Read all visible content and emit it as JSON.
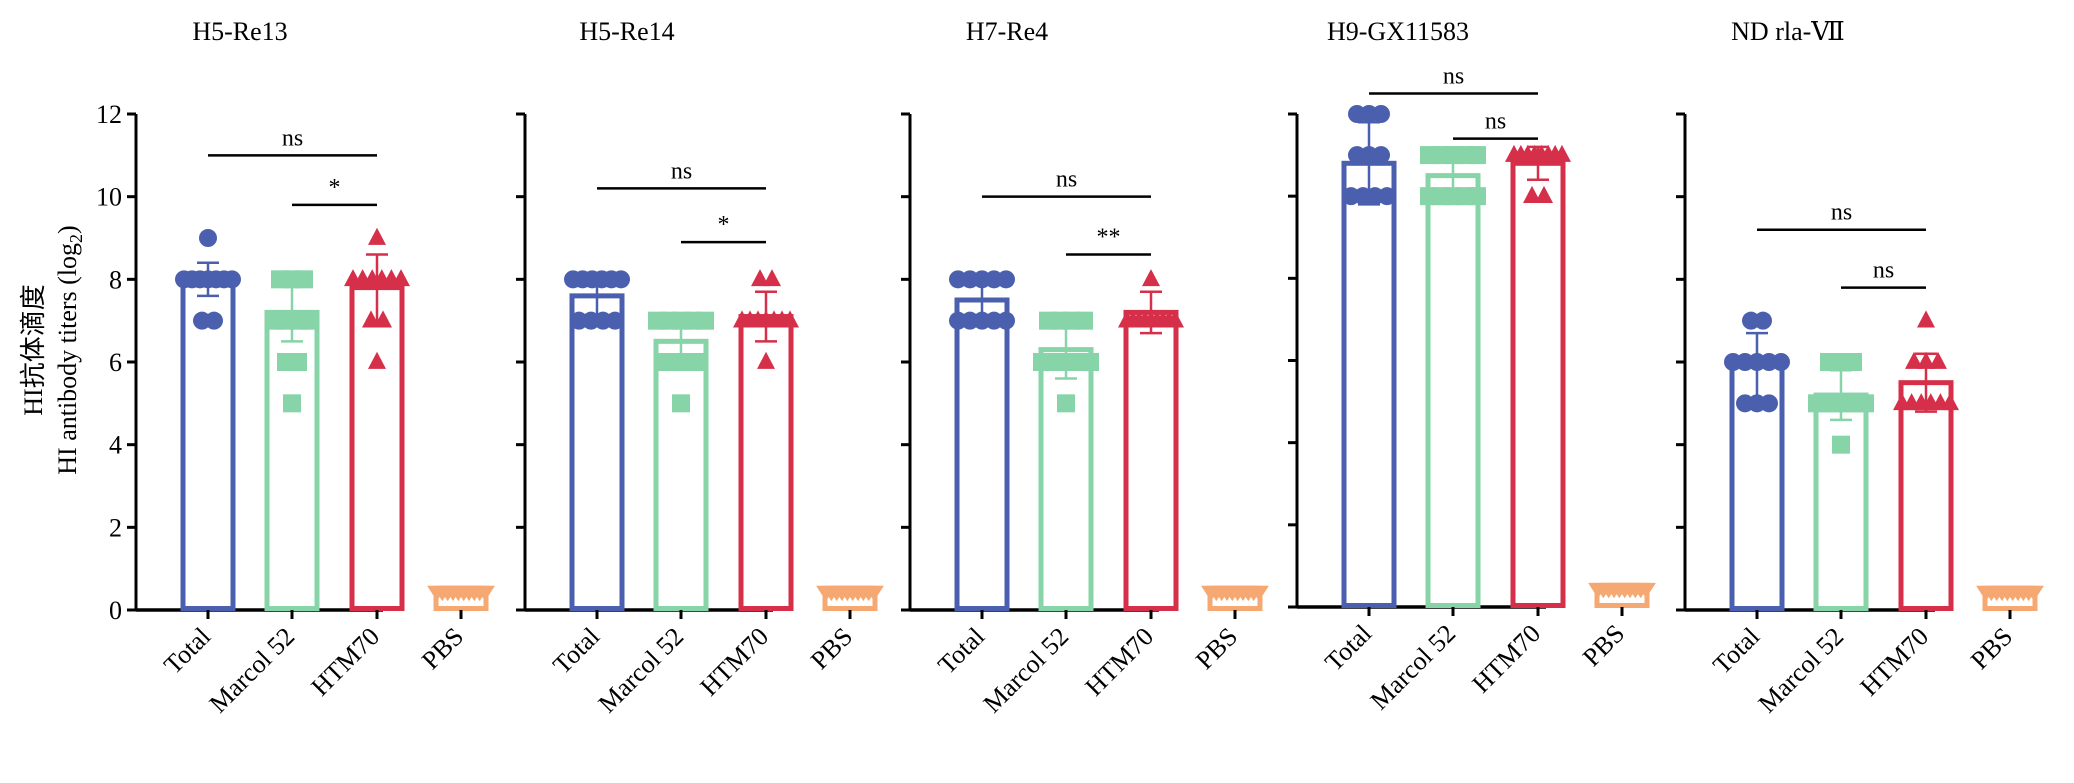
{
  "figure": {
    "ylabel_cn": "HI抗体滴度",
    "ylabel_en": "HI antibody titers (log",
    "ylabel_sub": "2",
    "ylabel_close": ")"
  },
  "colors": {
    "Total": "#4a5fad",
    "Marcol 52": "#86d4a7",
    "HTM70": "#d62f4a",
    "PBS": "#f5a872"
  },
  "chart_data": [
    {
      "type": "bar",
      "title": "H5-Re13",
      "categories": [
        "Total",
        "Marcol 52",
        "HTM70",
        "PBS"
      ],
      "ylim": [
        0,
        12
      ],
      "yticks": [
        0,
        2,
        4,
        6,
        8,
        10,
        12
      ],
      "values": [
        8.0,
        7.2,
        7.8,
        0.4
      ],
      "errors": [
        0.4,
        0.7,
        0.8,
        0
      ],
      "markers": [
        "circle",
        "square",
        "triangle",
        "invtriangle"
      ],
      "points": [
        [
          9,
          8,
          8,
          8,
          8,
          8,
          8,
          8,
          7,
          7
        ],
        [
          8,
          8,
          8,
          7,
          7,
          7,
          7,
          6,
          6,
          5
        ],
        [
          9,
          8,
          8,
          8,
          8,
          8,
          8,
          7,
          7,
          6
        ],
        [
          0.4,
          0.4,
          0.4,
          0.4,
          0.4,
          0.4,
          0.4,
          0.4,
          0.4,
          0.4
        ]
      ],
      "significance": [
        {
          "from": 0,
          "to": 2,
          "y": 11.0,
          "label": "ns"
        },
        {
          "from": 1,
          "to": 2,
          "y": 9.8,
          "label": "*"
        }
      ]
    },
    {
      "type": "bar",
      "title": "H5-Re14",
      "categories": [
        "Total",
        "Marcol 52",
        "HTM70",
        "PBS"
      ],
      "ylim": [
        0,
        12
      ],
      "yticks": [
        0,
        2,
        4,
        6,
        8,
        10,
        12
      ],
      "values": [
        7.6,
        6.5,
        7.1,
        0.4
      ],
      "errors": [
        0.5,
        0.6,
        0.6,
        0
      ],
      "markers": [
        "circle",
        "square",
        "triangle",
        "invtriangle"
      ],
      "points": [
        [
          8,
          8,
          8,
          8,
          8,
          8,
          7,
          7,
          7,
          7
        ],
        [
          7,
          7,
          7,
          7,
          7,
          6,
          6,
          6,
          6,
          5
        ],
        [
          8,
          8,
          7,
          7,
          7,
          7,
          7,
          7,
          7,
          6
        ],
        [
          0.4,
          0.4,
          0.4,
          0.4,
          0.4,
          0.4,
          0.4,
          0.4,
          0.4,
          0.4
        ]
      ],
      "significance": [
        {
          "from": 0,
          "to": 2,
          "y": 10.2,
          "label": "ns"
        },
        {
          "from": 1,
          "to": 2,
          "y": 8.9,
          "label": "*"
        }
      ]
    },
    {
      "type": "bar",
      "title": "H7-Re4",
      "categories": [
        "Total",
        "Marcol 52",
        "HTM70",
        "PBS"
      ],
      "ylim": [
        0,
        12
      ],
      "yticks": [
        0,
        2,
        4,
        6,
        8,
        10,
        12
      ],
      "values": [
        7.5,
        6.3,
        7.2,
        0.4
      ],
      "errors": [
        0.5,
        0.7,
        0.5,
        0
      ],
      "markers": [
        "circle",
        "square",
        "triangle",
        "invtriangle"
      ],
      "points": [
        [
          8,
          8,
          8,
          8,
          8,
          7,
          7,
          7,
          7,
          7
        ],
        [
          7,
          7,
          7,
          7,
          6,
          6,
          6,
          6,
          6,
          5
        ],
        [
          8,
          7,
          7,
          7,
          7,
          7,
          7,
          7,
          7,
          7
        ],
        [
          0.4,
          0.4,
          0.4,
          0.4,
          0.4,
          0.4,
          0.4,
          0.4,
          0.4,
          0.4
        ]
      ],
      "significance": [
        {
          "from": 0,
          "to": 2,
          "y": 10.0,
          "label": "ns"
        },
        {
          "from": 1,
          "to": 2,
          "y": 8.6,
          "label": "**"
        }
      ]
    },
    {
      "type": "bar",
      "title": "H9-GX11583",
      "categories": [
        "Total",
        "Marcol 52",
        "HTM70",
        "PBS"
      ],
      "ylim": [
        0,
        12
      ],
      "yticks": [
        0,
        2,
        4,
        6,
        8,
        10,
        12
      ],
      "values": [
        10.8,
        10.5,
        10.8,
        0.4
      ],
      "errors": [
        1.0,
        0.5,
        0.4,
        0
      ],
      "markers": [
        "circle",
        "square",
        "triangle",
        "invtriangle"
      ],
      "points": [
        [
          12,
          12,
          12,
          11,
          11,
          11,
          10,
          10,
          10,
          10
        ],
        [
          11,
          11,
          11,
          11,
          11,
          10,
          10,
          10,
          10,
          10
        ],
        [
          11,
          11,
          11,
          11,
          11,
          11,
          11,
          11,
          10,
          10
        ],
        [
          0.4,
          0.4,
          0.4,
          0.4,
          0.4,
          0.4,
          0.4,
          0.4,
          0.4,
          0.4
        ]
      ],
      "significance": [
        {
          "from": 0,
          "to": 2,
          "y": 12.5,
          "label": "ns"
        },
        {
          "from": 1,
          "to": 2,
          "y": 11.4,
          "label": "ns"
        }
      ]
    },
    {
      "type": "bar",
      "title": "ND rla-Ⅶ",
      "categories": [
        "Total",
        "Marcol 52",
        "HTM70",
        "PBS"
      ],
      "ylim": [
        0,
        12
      ],
      "yticks": [
        0,
        2,
        4,
        6,
        8,
        10,
        12
      ],
      "values": [
        5.9,
        5.2,
        5.5,
        0.4
      ],
      "errors": [
        0.8,
        0.6,
        0.7,
        0
      ],
      "markers": [
        "circle",
        "square",
        "triangle",
        "invtriangle"
      ],
      "points": [
        [
          7,
          7,
          6,
          6,
          6,
          6,
          6,
          5,
          5,
          5
        ],
        [
          6,
          6,
          6,
          5,
          5,
          5,
          5,
          5,
          5,
          4
        ],
        [
          7,
          6,
          6,
          6,
          5,
          5,
          5,
          5,
          5,
          5
        ],
        [
          0.4,
          0.4,
          0.4,
          0.4,
          0.4,
          0.4,
          0.4,
          0.4,
          0.4,
          0.4
        ]
      ],
      "significance": [
        {
          "from": 0,
          "to": 2,
          "y": 9.2,
          "label": "ns"
        },
        {
          "from": 1,
          "to": 2,
          "y": 7.8,
          "label": "ns"
        }
      ]
    }
  ]
}
